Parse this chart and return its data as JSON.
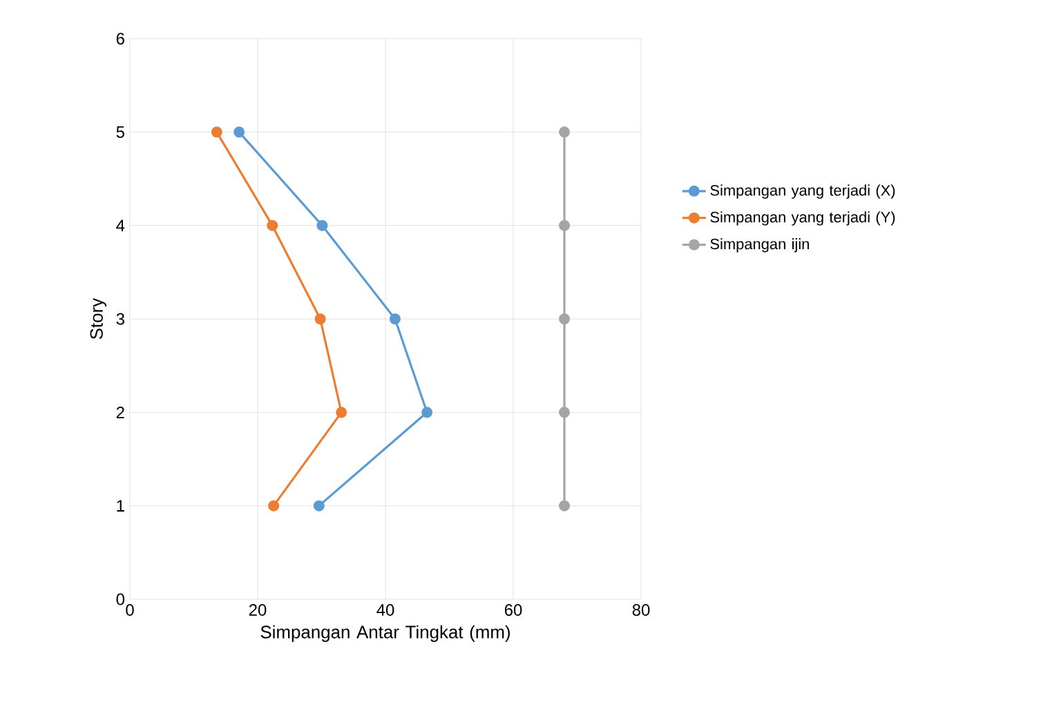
{
  "chart_data": {
    "type": "line",
    "xlabel": "Simpangan Antar Tingkat (mm)",
    "ylabel": "Story",
    "xlim": [
      0,
      80
    ],
    "ylim": [
      0,
      6
    ],
    "xticks": [
      0,
      20,
      40,
      60,
      80
    ],
    "yticks": [
      0,
      1,
      2,
      3,
      4,
      5,
      6
    ],
    "grid": true,
    "legend": "right",
    "marker": "circle",
    "line_style": "solid",
    "series": [
      {
        "name": "Simpangan yang terjadi (X)",
        "color": "#5b9bd5",
        "x": [
          17.1,
          30.1,
          41.5,
          46.5,
          29.6
        ],
        "values": [
          5,
          4,
          3,
          2,
          1
        ]
      },
      {
        "name": "Simpangan yang terjadi (Y)",
        "color": "#ed7d31",
        "x": [
          13.6,
          22.3,
          29.8,
          33.1,
          22.5
        ],
        "values": [
          5,
          4,
          3,
          2,
          1
        ]
      },
      {
        "name": "Simpangan ijin",
        "color": "#a5a5a5",
        "x": [
          68,
          68,
          68,
          68,
          68
        ],
        "values": [
          5,
          4,
          3,
          2,
          1
        ]
      }
    ]
  }
}
